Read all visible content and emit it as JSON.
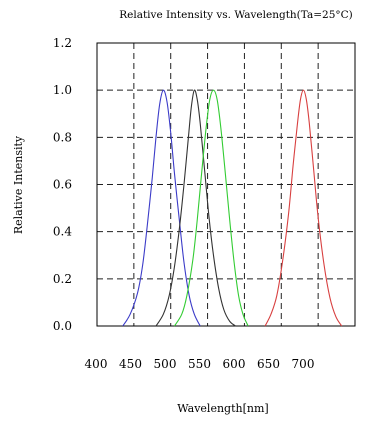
{
  "chart_data": {
    "type": "line",
    "title": "Relative Intensity vs. Wavelength(Ta=25°C)",
    "xlabel": "Wavelength[nm]",
    "ylabel": "Relative Intensity",
    "xlim": [
      400,
      750
    ],
    "ylim": [
      0,
      1.2
    ],
    "x_ticks": [
      "400",
      "450",
      "500",
      "550",
      "600",
      "650",
      "700"
    ],
    "y_ticks": [
      "0.0",
      "0.2",
      "0.4",
      "0.6",
      "0.8",
      "1.0",
      "1.2"
    ],
    "grid": true,
    "grid_style": "dashed",
    "legend": "none",
    "series": [
      {
        "color": "#3b3bc8",
        "x": [
          435,
          445,
          455,
          462,
          468,
          475,
          480,
          485,
          490,
          495,
          500,
          505,
          512,
          518,
          525,
          532,
          540
        ],
        "y": [
          0.0,
          0.05,
          0.14,
          0.26,
          0.42,
          0.63,
          0.8,
          0.94,
          1.0,
          0.95,
          0.82,
          0.65,
          0.44,
          0.27,
          0.13,
          0.05,
          0.0
        ]
      },
      {
        "color": "#333333",
        "x": [
          480,
          490,
          498,
          505,
          512,
          518,
          524,
          528,
          532,
          536,
          540,
          546,
          552,
          558,
          565,
          572,
          580,
          588
        ],
        "y": [
          0.0,
          0.05,
          0.13,
          0.25,
          0.42,
          0.6,
          0.8,
          0.93,
          1.0,
          0.96,
          0.86,
          0.66,
          0.46,
          0.3,
          0.16,
          0.07,
          0.02,
          0.0
        ]
      },
      {
        "color": "#33cc33",
        "x": [
          505,
          515,
          522,
          530,
          536,
          542,
          548,
          553,
          558,
          563,
          568,
          574,
          580,
          586,
          592,
          598,
          605
        ],
        "y": [
          0.0,
          0.05,
          0.13,
          0.28,
          0.45,
          0.65,
          0.84,
          0.96,
          1.0,
          0.96,
          0.84,
          0.65,
          0.45,
          0.27,
          0.13,
          0.05,
          0.0
        ]
      },
      {
        "color": "#d84040",
        "x": [
          628,
          636,
          644,
          652,
          660,
          666,
          672,
          676,
          680,
          684,
          688,
          694,
          700,
          708,
          716,
          724,
          732
        ],
        "y": [
          0.0,
          0.05,
          0.13,
          0.28,
          0.48,
          0.68,
          0.86,
          0.96,
          1.0,
          0.96,
          0.86,
          0.66,
          0.46,
          0.26,
          0.12,
          0.04,
          0.0
        ]
      }
    ]
  }
}
